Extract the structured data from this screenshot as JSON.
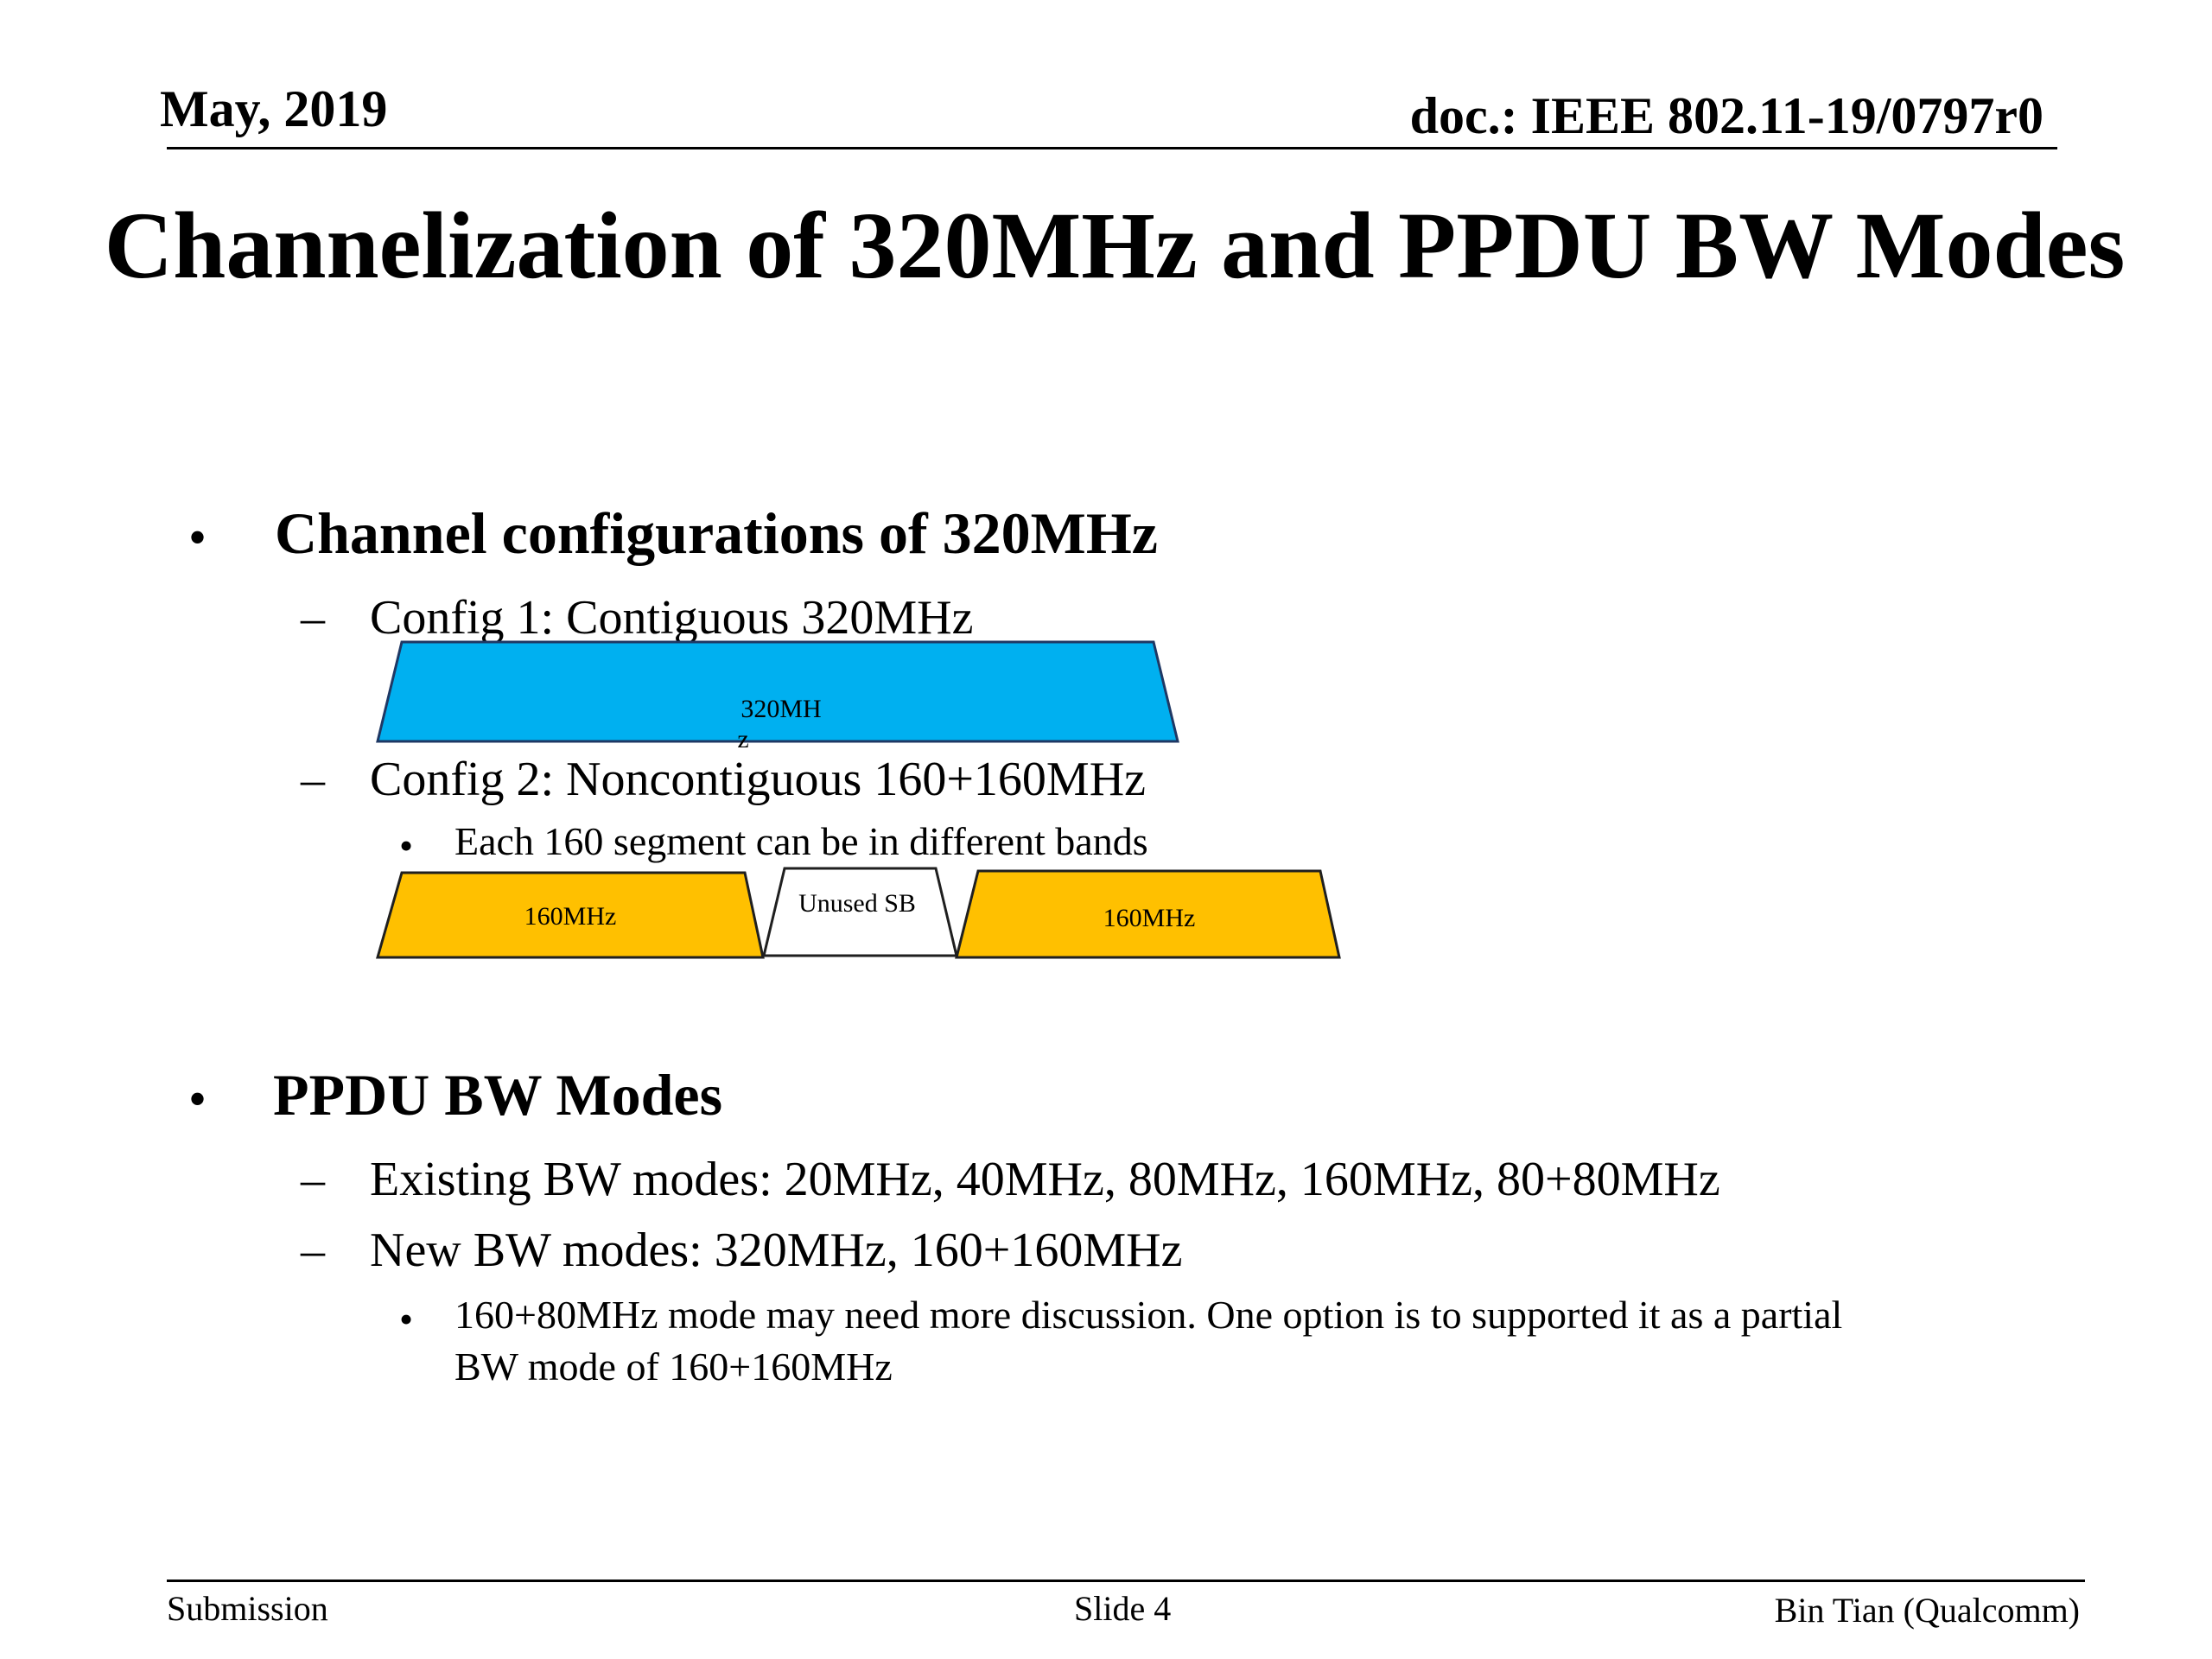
{
  "header": {
    "date": "May, 2019",
    "doc": "doc.: IEEE 802.11-19/0797r0"
  },
  "title": "Channelization of 320MHz and PPDU BW Modes",
  "sections": [
    {
      "heading": "Channel configurations of 320MHz",
      "config1": "Config 1: Contiguous 320MHz",
      "config2": "Config 2: Noncontiguous 160+160MHz",
      "config2_sub": "Each 160 segment can be in different bands"
    },
    {
      "heading": "PPDU BW Modes",
      "existing": "Existing BW modes: 20MHz, 40MHz, 80MHz, 160MHz, 80+80MHz",
      "new": "New BW modes: 320MHz, 160+160MHz",
      "note_line1": "160+80MHz mode may need more discussion. One option is to supported it as a partial",
      "note_line2": "BW mode of 160+160MHz"
    }
  ],
  "diagram": {
    "contiguous_label_line1": "320MH",
    "contiguous_label_line2": "z",
    "seg1_label": "160MHz",
    "unused_label": "Unused SB",
    "seg2_label": "160MHz",
    "colors": {
      "contiguous": "#00B0F0",
      "segment": "#FFC000",
      "unused": "#FFFFFF"
    }
  },
  "footer": {
    "left": "Submission",
    "center": "Slide 4",
    "right": "Bin Tian (Qualcomm)"
  }
}
